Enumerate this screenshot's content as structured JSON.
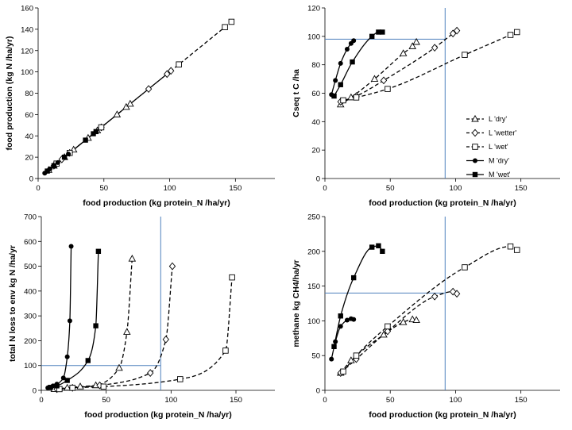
{
  "colors": {
    "ref_line": "#4f81bd",
    "axis": "#000000",
    "series": "#000000",
    "background": "#ffffff"
  },
  "chart_data": [
    {
      "type": "scatter",
      "panel": "top-left",
      "xlabel": "food production (kg protein_N /ha/yr)",
      "ylabel": "food production (kg N /ha/yr)",
      "xlim": [
        0,
        180
      ],
      "ylim": [
        0,
        160
      ],
      "xticks": [
        0,
        50,
        100,
        150
      ],
      "yticks": [
        0,
        20,
        40,
        60,
        80,
        100,
        120,
        140,
        160
      ],
      "grid": false,
      "legend": "none",
      "series": [
        {
          "name": "L 'dry'",
          "marker": "triangle-open",
          "line": "dashed",
          "x": [
            8,
            12,
            20,
            27,
            38,
            45,
            60,
            67,
            70
          ],
          "y": [
            8,
            12,
            20,
            27,
            38,
            45,
            60,
            67,
            70
          ]
        },
        {
          "name": "L 'wetter'",
          "marker": "diamond-open",
          "line": "dashed",
          "x": [
            12,
            18,
            24,
            48,
            84,
            98,
            101
          ],
          "y": [
            12,
            18,
            24,
            48,
            84,
            98,
            101
          ]
        },
        {
          "name": "L 'wet'",
          "marker": "square-open",
          "line": "dashed",
          "x": [
            14,
            24,
            48,
            107,
            142,
            147
          ],
          "y": [
            14,
            24,
            48,
            107,
            142,
            147
          ]
        },
        {
          "name": "M 'dry'",
          "marker": "circle-filled",
          "line": "solid",
          "x": [
            5,
            7,
            9,
            12,
            15,
            20,
            23
          ],
          "y": [
            5,
            7,
            9,
            12,
            15,
            20,
            23
          ]
        },
        {
          "name": "M 'wet'",
          "marker": "square-filled",
          "line": "solid",
          "x": [
            7,
            12,
            20,
            36,
            42,
            44
          ],
          "y": [
            7,
            12,
            20,
            36,
            42,
            44
          ]
        }
      ]
    },
    {
      "type": "scatter",
      "panel": "top-right",
      "xlabel": "food production (kg protein_N /ha/yr)",
      "ylabel": "Cseq  t C /ha",
      "xlim": [
        0,
        180
      ],
      "ylim": [
        0,
        120
      ],
      "xticks": [
        0,
        50,
        100,
        150
      ],
      "yticks": [
        0,
        20,
        40,
        60,
        80,
        100,
        120
      ],
      "grid": false,
      "legend": "right",
      "ref_lines": {
        "x": 92,
        "y": 98
      },
      "series": [
        {
          "name": "L 'dry'",
          "marker": "triangle-open",
          "line": "dashed",
          "x": [
            12,
            20,
            38,
            60,
            67,
            70
          ],
          "y": [
            52,
            57,
            70,
            88,
            93,
            96
          ]
        },
        {
          "name": "L 'wetter'",
          "marker": "diamond-open",
          "line": "dashed",
          "x": [
            12,
            24,
            45,
            84,
            98,
            101
          ],
          "y": [
            54,
            58,
            69,
            92,
            102,
            104
          ]
        },
        {
          "name": "L 'wet'",
          "marker": "square-open",
          "line": "dashed",
          "x": [
            14,
            24,
            48,
            107,
            142,
            147
          ],
          "y": [
            55,
            57,
            63,
            87,
            101,
            103
          ]
        },
        {
          "name": "M 'dry'",
          "marker": "circle-filled",
          "line": "solid",
          "x": [
            5,
            8,
            12,
            17,
            20,
            22
          ],
          "y": [
            59,
            69,
            81,
            91,
            95,
            97
          ]
        },
        {
          "name": "M 'wet'",
          "marker": "square-filled",
          "line": "solid",
          "x": [
            7,
            12,
            21,
            36,
            41,
            44
          ],
          "y": [
            58,
            66,
            82,
            100,
            103,
            103
          ]
        }
      ]
    },
    {
      "type": "scatter",
      "panel": "bottom-left",
      "xlabel": "food production (kg protein_N /ha/yr)",
      "ylabel": "total N loss to env kg N /ha/yr",
      "xlim": [
        0,
        180
      ],
      "ylim": [
        0,
        700
      ],
      "xticks": [
        0,
        50,
        100,
        150
      ],
      "yticks": [
        0,
        100,
        200,
        300,
        400,
        500,
        600,
        700
      ],
      "grid": false,
      "legend": "none",
      "ref_lines": {
        "x": 92,
        "y": 100
      },
      "series": [
        {
          "name": "L 'dry'",
          "marker": "triangle-open",
          "line": "dashed",
          "x": [
            10,
            20,
            30,
            42,
            60,
            66,
            70
          ],
          "y": [
            5,
            10,
            15,
            20,
            90,
            235,
            530
          ]
        },
        {
          "name": "L 'wetter'",
          "marker": "diamond-open",
          "line": "dashed",
          "x": [
            12,
            24,
            45,
            84,
            96,
            101
          ],
          "y": [
            5,
            10,
            20,
            70,
            205,
            500
          ]
        },
        {
          "name": "L 'wet'",
          "marker": "square-open",
          "line": "dashed",
          "x": [
            14,
            24,
            48,
            107,
            142,
            147
          ],
          "y": [
            5,
            10,
            15,
            45,
            160,
            455
          ]
        },
        {
          "name": "M 'dry'",
          "marker": "circle-filled",
          "line": "solid",
          "x": [
            5,
            9,
            12,
            17,
            20,
            22,
            23
          ],
          "y": [
            10,
            18,
            25,
            50,
            135,
            280,
            580
          ]
        },
        {
          "name": "M 'wet'",
          "marker": "square-filled",
          "line": "solid",
          "x": [
            7,
            12,
            20,
            36,
            42,
            44
          ],
          "y": [
            12,
            18,
            40,
            120,
            260,
            560
          ]
        }
      ]
    },
    {
      "type": "scatter",
      "panel": "bottom-right",
      "xlabel": "food production (kg protein_N /ha/yr)",
      "ylabel": "methane  kg CH4/ha/yr",
      "xlim": [
        0,
        180
      ],
      "ylim": [
        0,
        250
      ],
      "xticks": [
        0,
        50,
        100,
        150
      ],
      "yticks": [
        0,
        50,
        100,
        150,
        200,
        250
      ],
      "grid": false,
      "legend": "none",
      "ref_lines": {
        "x": 92,
        "y": 140
      },
      "series": [
        {
          "name": "L 'dry'",
          "marker": "triangle-open",
          "line": "dashed",
          "x": [
            12,
            20,
            45,
            60,
            67,
            70
          ],
          "y": [
            25,
            43,
            80,
            98,
            102,
            101
          ]
        },
        {
          "name": "L 'wetter'",
          "marker": "diamond-open",
          "line": "dashed",
          "x": [
            12,
            24,
            48,
            84,
            98,
            101
          ],
          "y": [
            25,
            45,
            85,
            135,
            142,
            139
          ]
        },
        {
          "name": "L 'wet'",
          "marker": "square-open",
          "line": "dashed",
          "x": [
            14,
            24,
            48,
            107,
            142,
            147
          ],
          "y": [
            27,
            50,
            92,
            177,
            207,
            202
          ]
        },
        {
          "name": "M 'dry'",
          "marker": "circle-filled",
          "line": "solid",
          "x": [
            5,
            8,
            12,
            17,
            20,
            22
          ],
          "y": [
            45,
            70,
            92,
            101,
            103,
            102
          ]
        },
        {
          "name": "M 'wet'",
          "marker": "square-filled",
          "line": "solid",
          "x": [
            7,
            12,
            22,
            36,
            41,
            44
          ],
          "y": [
            63,
            107,
            162,
            206,
            208,
            200
          ]
        }
      ]
    }
  ]
}
